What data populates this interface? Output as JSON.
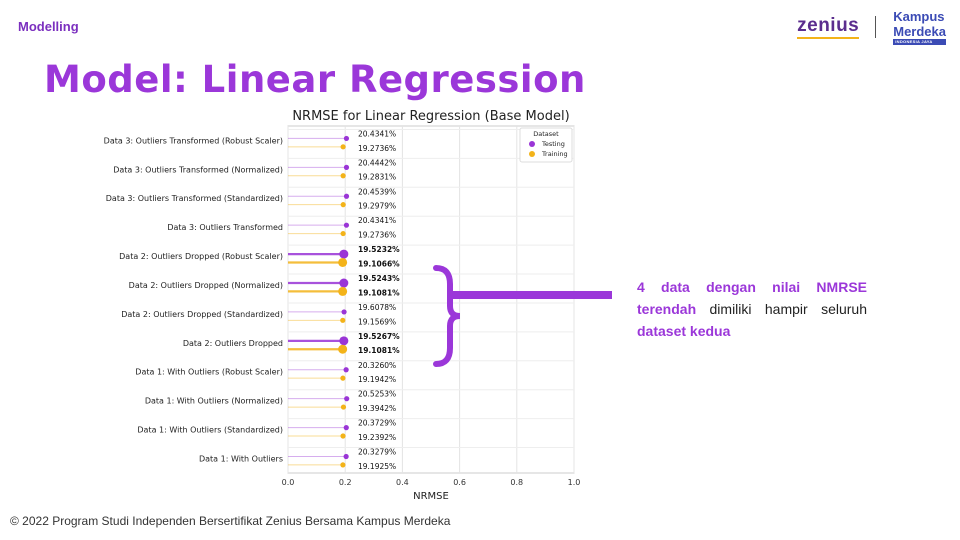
{
  "header": {
    "section": "Modelling",
    "logo_zenius": "zenius",
    "logo_kampus": "Kampus",
    "logo_merdeka": "Merdeka",
    "logo_tag": "INDONESIA JAYA"
  },
  "title": "Model: Linear Regression",
  "callout": {
    "p1": "4 data dengan nilai NMRSE terendah",
    "p2": " dimiliki hampir seluruh ",
    "p3": "dataset kedua",
    "brace": "}"
  },
  "footer": "© 2022 Program Studi Independen Bersertifikat Zenius Bersama Kampus Merdeka",
  "colors": {
    "accent": "#9b37d9",
    "testing": "#9a35d6",
    "training": "#f3b319"
  },
  "chart_data": {
    "type": "scatter",
    "title": "NRMSE for Linear Regression (Base Model)",
    "xlabel": "NRMSE",
    "ylabel": "",
    "xlim": [
      0,
      1.0
    ],
    "xticks": [
      "0.0",
      "0.2",
      "0.4",
      "0.6",
      "0.8",
      "1.0"
    ],
    "grid": true,
    "legend": {
      "title": "Dataset",
      "placement": "top-right"
    },
    "categories": [
      "Data 3: Outliers Transformed (Robust Scaler)",
      "Data 3: Outliers Transformed (Normalized)",
      "Data 3: Outliers Transformed (Standardized)",
      "Data 3: Outliers Transformed",
      "Data 2: Outliers Dropped (Robust Scaler)",
      "Data 2: Outliers Dropped (Normalized)",
      "Data 2: Outliers Dropped (Standardized)",
      "Data 2: Outliers Dropped",
      "Data 1: With Outliers (Robust Scaler)",
      "Data 1: With Outliers (Normalized)",
      "Data 1: With Outliers (Standardized)",
      "Data 1: With Outliers"
    ],
    "highlighted": [
      false,
      false,
      false,
      false,
      true,
      true,
      false,
      true,
      false,
      false,
      false,
      false
    ],
    "series": [
      {
        "name": "Testing",
        "values": [
          0.204341,
          0.204442,
          0.204539,
          0.204341,
          0.195232,
          0.195243,
          0.196078,
          0.195267,
          0.20326,
          0.205253,
          0.203729,
          0.203279
        ],
        "labels": [
          "20.4341%",
          "20.4442%",
          "20.4539%",
          "20.4341%",
          "19.5232%",
          "19.5243%",
          "19.6078%",
          "19.5267%",
          "20.3260%",
          "20.5253%",
          "20.3729%",
          "20.3279%"
        ]
      },
      {
        "name": "Training",
        "values": [
          0.192736,
          0.192831,
          0.192979,
          0.192736,
          0.191066,
          0.191081,
          0.191569,
          0.191081,
          0.191942,
          0.193942,
          0.192392,
          0.191925
        ],
        "labels": [
          "19.2736%",
          "19.2831%",
          "19.2979%",
          "19.2736%",
          "19.1066%",
          "19.1081%",
          "19.1569%",
          "19.1081%",
          "19.1942%",
          "19.3942%",
          "19.2392%",
          "19.1925%"
        ]
      }
    ]
  }
}
